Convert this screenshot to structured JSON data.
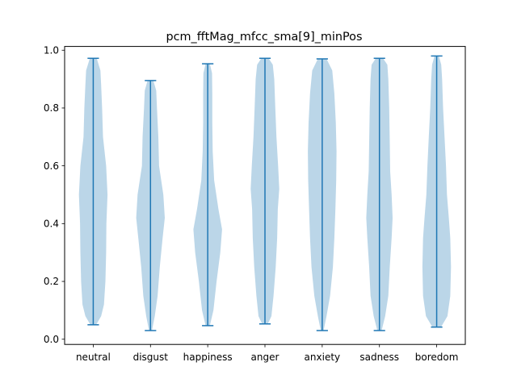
{
  "chart_data": {
    "type": "violin",
    "title": "pcm_fftMag_mfcc_sma[9]_minPos",
    "xlabel": "",
    "ylabel": "",
    "ylim": [
      -0.018,
      1.013
    ],
    "yticks": [
      "0.0",
      "0.2",
      "0.4",
      "0.6",
      "0.8",
      "1.0"
    ],
    "categories": [
      "neutral",
      "disgust",
      "happiness",
      "anger",
      "anxiety",
      "sadness",
      "boredom"
    ],
    "series": [
      {
        "category": "neutral",
        "min": 0.05,
        "max": 0.972,
        "density_profile": [
          [
            0.05,
            0.2
          ],
          [
            0.08,
            0.55
          ],
          [
            0.12,
            0.75
          ],
          [
            0.2,
            0.85
          ],
          [
            0.3,
            0.9
          ],
          [
            0.4,
            0.92
          ],
          [
            0.5,
            1.0
          ],
          [
            0.6,
            0.9
          ],
          [
            0.7,
            0.68
          ],
          [
            0.8,
            0.62
          ],
          [
            0.88,
            0.55
          ],
          [
            0.93,
            0.5
          ],
          [
            0.97,
            0.25
          ]
        ]
      },
      {
        "category": "disgust",
        "min": 0.03,
        "max": 0.895,
        "density_profile": [
          [
            0.03,
            0.1
          ],
          [
            0.08,
            0.3
          ],
          [
            0.15,
            0.5
          ],
          [
            0.25,
            0.65
          ],
          [
            0.35,
            0.85
          ],
          [
            0.42,
            1.0
          ],
          [
            0.5,
            0.9
          ],
          [
            0.6,
            0.6
          ],
          [
            0.7,
            0.55
          ],
          [
            0.8,
            0.45
          ],
          [
            0.86,
            0.4
          ],
          [
            0.895,
            0.2
          ]
        ]
      },
      {
        "category": "happiness",
        "min": 0.047,
        "max": 0.953,
        "density_profile": [
          [
            0.047,
            0.15
          ],
          [
            0.1,
            0.4
          ],
          [
            0.2,
            0.62
          ],
          [
            0.3,
            0.88
          ],
          [
            0.38,
            1.0
          ],
          [
            0.45,
            0.75
          ],
          [
            0.55,
            0.45
          ],
          [
            0.65,
            0.35
          ],
          [
            0.75,
            0.32
          ],
          [
            0.85,
            0.32
          ],
          [
            0.92,
            0.3
          ],
          [
            0.953,
            0.15
          ]
        ]
      },
      {
        "category": "anger",
        "min": 0.053,
        "max": 0.972,
        "density_profile": [
          [
            0.053,
            0.2
          ],
          [
            0.08,
            0.45
          ],
          [
            0.15,
            0.6
          ],
          [
            0.25,
            0.75
          ],
          [
            0.35,
            0.85
          ],
          [
            0.45,
            0.9
          ],
          [
            0.52,
            1.0
          ],
          [
            0.6,
            0.92
          ],
          [
            0.7,
            0.8
          ],
          [
            0.8,
            0.72
          ],
          [
            0.9,
            0.65
          ],
          [
            0.95,
            0.55
          ],
          [
            0.972,
            0.25
          ]
        ]
      },
      {
        "category": "anxiety",
        "min": 0.03,
        "max": 0.97,
        "density_profile": [
          [
            0.03,
            0.1
          ],
          [
            0.08,
            0.3
          ],
          [
            0.15,
            0.55
          ],
          [
            0.25,
            0.75
          ],
          [
            0.35,
            0.85
          ],
          [
            0.45,
            0.92
          ],
          [
            0.55,
            0.98
          ],
          [
            0.65,
            1.0
          ],
          [
            0.75,
            0.95
          ],
          [
            0.85,
            0.85
          ],
          [
            0.93,
            0.7
          ],
          [
            0.97,
            0.3
          ]
        ]
      },
      {
        "category": "sadness",
        "min": 0.03,
        "max": 0.972,
        "density_profile": [
          [
            0.03,
            0.15
          ],
          [
            0.08,
            0.4
          ],
          [
            0.15,
            0.62
          ],
          [
            0.25,
            0.72
          ],
          [
            0.35,
            0.85
          ],
          [
            0.42,
            0.92
          ],
          [
            0.5,
            0.85
          ],
          [
            0.58,
            0.75
          ],
          [
            0.68,
            0.72
          ],
          [
            0.8,
            0.68
          ],
          [
            0.9,
            0.62
          ],
          [
            0.95,
            0.55
          ],
          [
            0.972,
            0.25
          ]
        ]
      },
      {
        "category": "boredom",
        "min": 0.042,
        "max": 0.98,
        "density_profile": [
          [
            0.042,
            0.3
          ],
          [
            0.08,
            0.75
          ],
          [
            0.15,
            0.95
          ],
          [
            0.25,
            1.0
          ],
          [
            0.35,
            0.95
          ],
          [
            0.42,
            0.85
          ],
          [
            0.5,
            0.72
          ],
          [
            0.6,
            0.65
          ],
          [
            0.7,
            0.55
          ],
          [
            0.8,
            0.45
          ],
          [
            0.9,
            0.38
          ],
          [
            0.95,
            0.32
          ],
          [
            0.98,
            0.15
          ]
        ]
      }
    ],
    "grid": false,
    "colors": {
      "body": "#1f77b4",
      "body_opacity": "0.3",
      "line": "#1f77b4"
    }
  }
}
